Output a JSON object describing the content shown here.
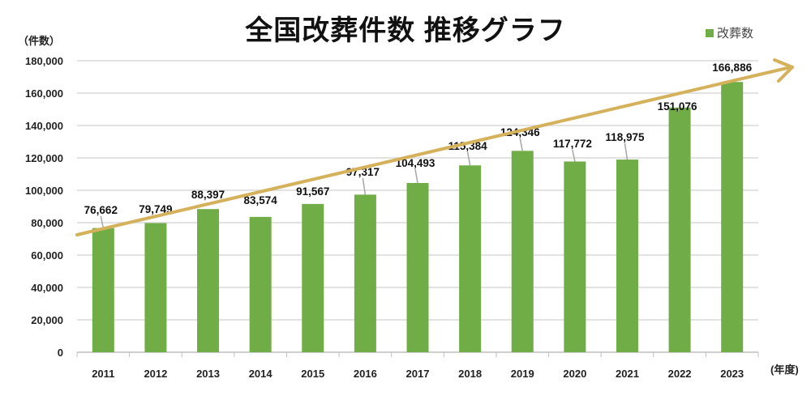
{
  "chart_data": {
    "type": "bar",
    "title": "全国改葬件数 推移グラフ",
    "ylabel": "（件数）",
    "xlabel": "(年度)",
    "categories": [
      "2011",
      "2012",
      "2013",
      "2014",
      "2015",
      "2016",
      "2017",
      "2018",
      "2019",
      "2020",
      "2021",
      "2022",
      "2023"
    ],
    "series": [
      {
        "name": "改葬数",
        "values": [
          76662,
          79749,
          88397,
          83574,
          91567,
          97317,
          104493,
          115384,
          124346,
          117772,
          118975,
          151076,
          166886
        ],
        "color": "#70ad47"
      }
    ],
    "data_labels": [
      "76,662",
      "79,749",
      "88,397",
      "83,574",
      "91,567",
      "97,317",
      "104,493",
      "115,384",
      "124,346",
      "117,772",
      "118,975",
      "151,076",
      "166,886"
    ],
    "ylim": [
      0,
      180000
    ],
    "yticks": [
      0,
      20000,
      40000,
      60000,
      80000,
      100000,
      120000,
      140000,
      160000,
      180000
    ],
    "ytick_labels": [
      "0",
      "20,000",
      "40,000",
      "60,000",
      "80,000",
      "100,000",
      "120,000",
      "140,000",
      "160,000",
      "180,000"
    ],
    "grid": true,
    "legend": "top-right",
    "trend_arrow_color": "#d4b15a"
  }
}
